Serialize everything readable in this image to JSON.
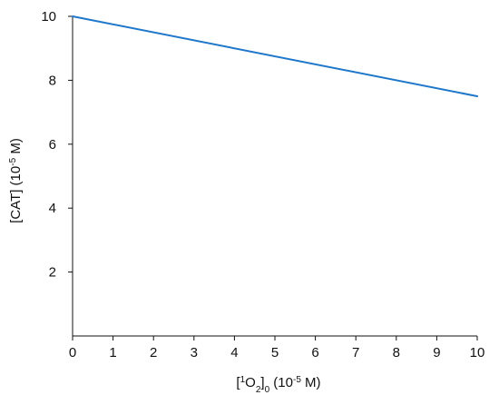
{
  "chart_data": {
    "type": "line",
    "title": "",
    "xlabel": {
      "prefix": "[",
      "sup1": "1",
      "main": "O",
      "sub1": "2",
      "mid": "]",
      "sub2": "0",
      "unit_prefix": " (10",
      "unit_sup": "-5",
      "unit_suffix": " M)"
    },
    "ylabel": {
      "main": "[CAT] (10",
      "sup": "-5",
      "suffix": " M)"
    },
    "xlim": [
      0,
      10
    ],
    "ylim": [
      0,
      10
    ],
    "x_ticks": [
      0,
      1,
      2,
      3,
      4,
      5,
      6,
      7,
      8,
      9,
      10
    ],
    "y_ticks": [
      2,
      4,
      6,
      8,
      10
    ],
    "grid": false,
    "series": [
      {
        "color": "#1f77c9",
        "x": [
          0,
          10
        ],
        "y": [
          10,
          7.5
        ]
      }
    ]
  }
}
